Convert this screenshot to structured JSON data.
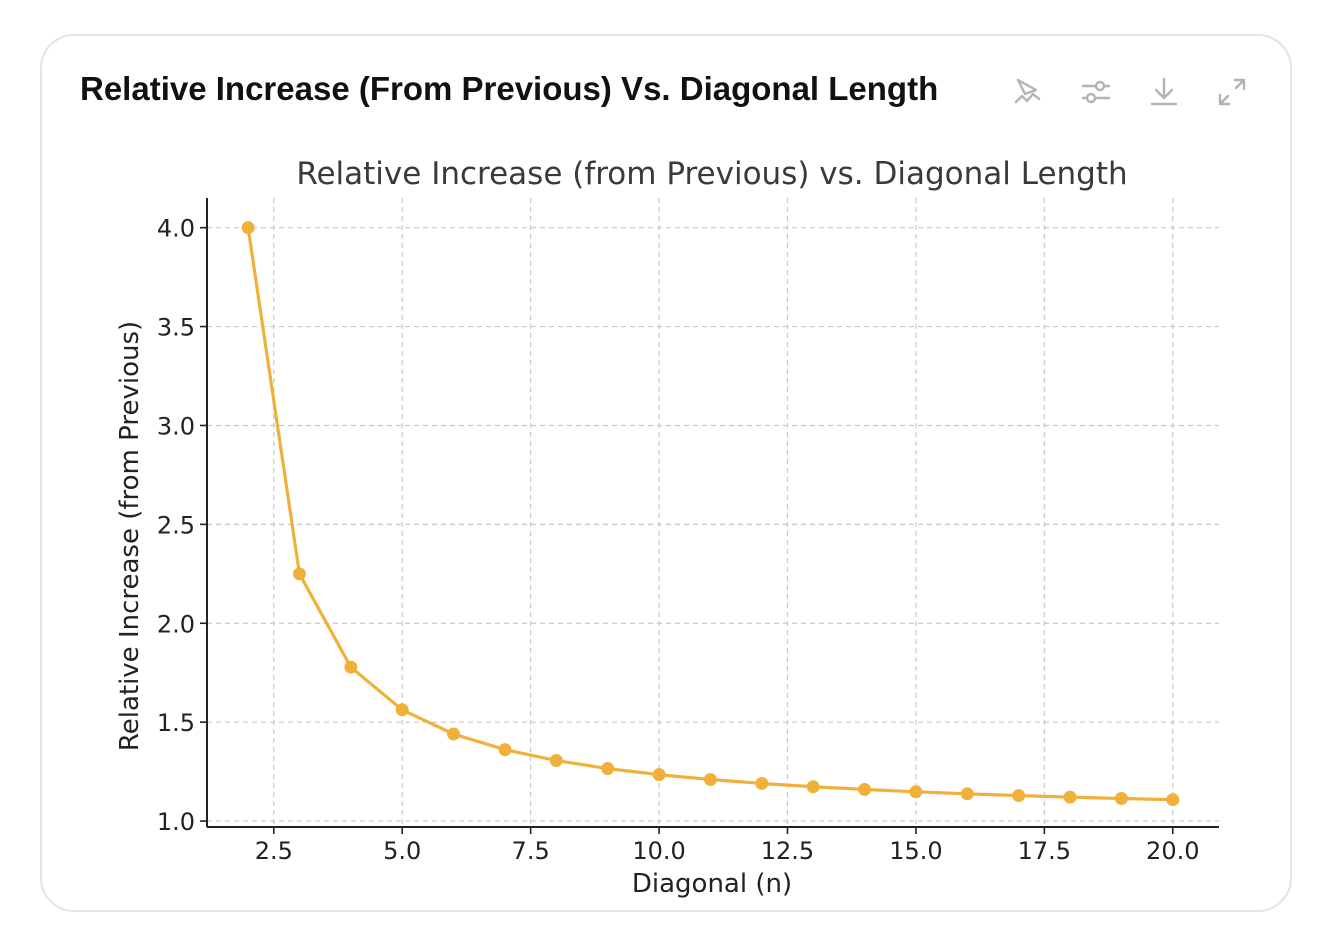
{
  "card": {
    "title": "Relative Increase (From Previous) Vs. Diagonal Length"
  },
  "toolbar": {
    "icons": [
      "interactive-chart-icon",
      "adjust-settings-icon",
      "download-icon",
      "expand-icon"
    ],
    "icon_color": "#b3b3b3"
  },
  "chart_data": {
    "type": "line",
    "title": "Relative Increase (from Previous) vs. Diagonal Length",
    "xlabel": "Diagonal (n)",
    "ylabel": "Relative Increase (from Previous)",
    "xlim": [
      1.2,
      20.9
    ],
    "ylim": [
      0.97,
      4.15
    ],
    "xticks": [
      2.5,
      5.0,
      7.5,
      10.0,
      12.5,
      15.0,
      17.5,
      20.0
    ],
    "xtick_labels": [
      "2.5",
      "5.0",
      "7.5",
      "10.0",
      "12.5",
      "15.0",
      "17.5",
      "20.0"
    ],
    "yticks": [
      1.0,
      1.5,
      2.0,
      2.5,
      3.0,
      3.5,
      4.0
    ],
    "ytick_labels": [
      "1.0",
      "1.5",
      "2.0",
      "2.5",
      "3.0",
      "3.5",
      "4.0"
    ],
    "grid": true,
    "color": "#f0b13b",
    "x": [
      2,
      3,
      4,
      5,
      6,
      7,
      8,
      9,
      10,
      11,
      12,
      13,
      14,
      15,
      16,
      17,
      18,
      19,
      20
    ],
    "y": [
      4.0,
      2.25,
      1.778,
      1.5625,
      1.44,
      1.3611,
      1.3061,
      1.2656,
      1.2346,
      1.21,
      1.1901,
      1.1736,
      1.1598,
      1.148,
      1.1378,
      1.1289,
      1.1211,
      1.1142,
      1.108
    ]
  }
}
